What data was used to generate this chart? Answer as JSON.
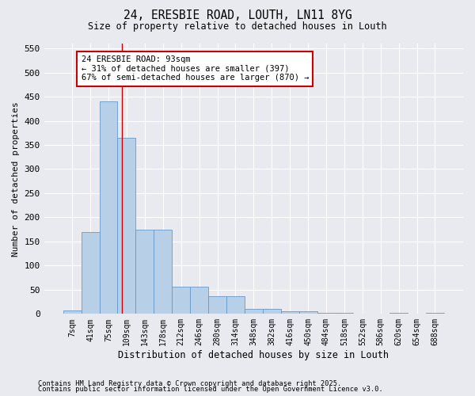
{
  "title": "24, ERESBIE ROAD, LOUTH, LN11 8YG",
  "subtitle": "Size of property relative to detached houses in Louth",
  "xlabel": "Distribution of detached houses by size in Louth",
  "ylabel": "Number of detached properties",
  "footnote1": "Contains HM Land Registry data © Crown copyright and database right 2025.",
  "footnote2": "Contains public sector information licensed under the Open Government Licence v3.0.",
  "categories": [
    "7sqm",
    "41sqm",
    "75sqm",
    "109sqm",
    "143sqm",
    "178sqm",
    "212sqm",
    "246sqm",
    "280sqm",
    "314sqm",
    "348sqm",
    "382sqm",
    "416sqm",
    "450sqm",
    "484sqm",
    "518sqm",
    "552sqm",
    "586sqm",
    "620sqm",
    "654sqm",
    "688sqm"
  ],
  "values": [
    7,
    170,
    440,
    365,
    175,
    175,
    57,
    57,
    37,
    37,
    10,
    10,
    5,
    5,
    3,
    3,
    0,
    0,
    2,
    0,
    3
  ],
  "bar_color": "#b8cfe8",
  "bar_edge_color": "#6699cc",
  "background_color": "#e8eaf0",
  "grid_color": "#ffffff",
  "vline_x": 2.72,
  "vline_color": "#cc0000",
  "annotation_text": "24 ERESBIE ROAD: 93sqm\n← 31% of detached houses are smaller (397)\n67% of semi-detached houses are larger (870) →",
  "annotation_box_color": "white",
  "annotation_edge_color": "#cc0000",
  "ylim": [
    0,
    560
  ],
  "yticks": [
    0,
    50,
    100,
    150,
    200,
    250,
    300,
    350,
    400,
    450,
    500,
    550
  ]
}
